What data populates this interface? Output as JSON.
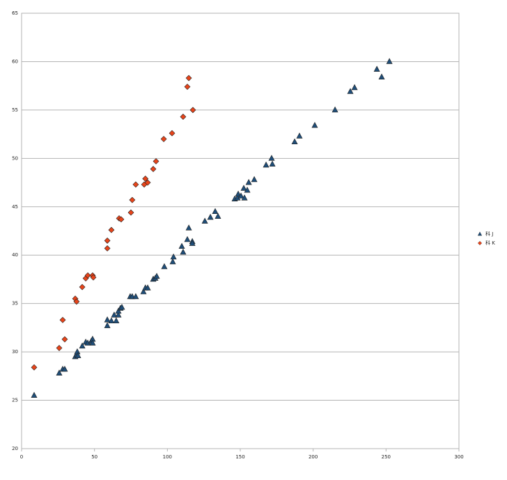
{
  "chart_data": {
    "type": "scatter",
    "xlim": [
      0,
      300
    ],
    "xticks": [
      0,
      50,
      100,
      150,
      200,
      250,
      300
    ],
    "ylim": [
      20,
      65
    ],
    "yticks": [
      20,
      25,
      30,
      35,
      40,
      45,
      50,
      55,
      60,
      65
    ],
    "grid": true,
    "legend": "right",
    "series": [
      {
        "name": "科 J",
        "color": "#1f4e79",
        "marker": "triangle",
        "x": [
          8.6,
          25.8,
          28.2,
          29.6,
          36.8,
          37.7,
          38.2,
          38.7,
          41.6,
          44.0,
          45.4,
          47.8,
          48.7,
          48.7,
          58.8,
          58.8,
          61.6,
          63.5,
          64.9,
          66.4,
          66.4,
          67.8,
          68.8,
          74.5,
          75.9,
          78.3,
          83.6,
          84.9,
          86.5,
          90.3,
          91.7,
          92.7,
          97.9,
          103.7,
          104.2,
          109.9,
          110.8,
          113.7,
          114.7,
          117.1,
          117.1,
          125.7,
          129.5,
          132.8,
          134.7,
          146.2,
          148.1,
          148.6,
          150.5,
          152.4,
          152.9,
          154.8,
          155.8,
          159.6,
          167.7,
          171.5,
          172.0,
          187.3,
          190.6,
          201.1,
          215.0,
          225.5,
          228.4,
          243.7,
          247.0,
          252.3
        ],
        "values": [
          25.5,
          27.8,
          28.2,
          28.2,
          29.5,
          29.7,
          30.0,
          29.6,
          30.6,
          31.0,
          30.9,
          31.1,
          31.3,
          30.9,
          33.3,
          32.7,
          33.2,
          33.8,
          33.2,
          33.8,
          34.2,
          34.5,
          34.6,
          35.7,
          35.7,
          35.7,
          36.2,
          36.6,
          36.6,
          37.5,
          37.6,
          37.8,
          38.8,
          39.3,
          39.8,
          40.9,
          40.3,
          41.6,
          42.8,
          41.4,
          41.2,
          43.5,
          43.9,
          44.5,
          44.0,
          45.8,
          45.9,
          46.3,
          46.1,
          46.9,
          45.9,
          46.7,
          47.5,
          47.8,
          49.3,
          50.0,
          49.4,
          51.7,
          52.3,
          53.4,
          55.0,
          56.9,
          57.3,
          59.2,
          58.4,
          60.0
        ]
      },
      {
        "name": "科 K",
        "color": "#e8441a",
        "marker": "diamond",
        "x": [
          8.6,
          25.8,
          28.2,
          29.6,
          36.8,
          37.7,
          41.6,
          44.0,
          45.4,
          48.7,
          49.2,
          58.8,
          58.8,
          61.6,
          66.9,
          68.3,
          75.0,
          75.9,
          78.3,
          84.1,
          84.9,
          86.5,
          90.3,
          92.2,
          97.5,
          103.2,
          110.8,
          113.7,
          114.7,
          117.5
        ],
        "values": [
          28.4,
          30.4,
          33.3,
          31.3,
          35.5,
          35.2,
          36.7,
          37.6,
          37.9,
          37.9,
          37.7,
          41.5,
          40.7,
          42.6,
          43.8,
          43.7,
          44.4,
          45.7,
          47.3,
          47.3,
          47.9,
          47.5,
          48.9,
          49.7,
          52.0,
          52.6,
          54.3,
          57.4,
          58.3,
          55.0
        ]
      }
    ]
  }
}
